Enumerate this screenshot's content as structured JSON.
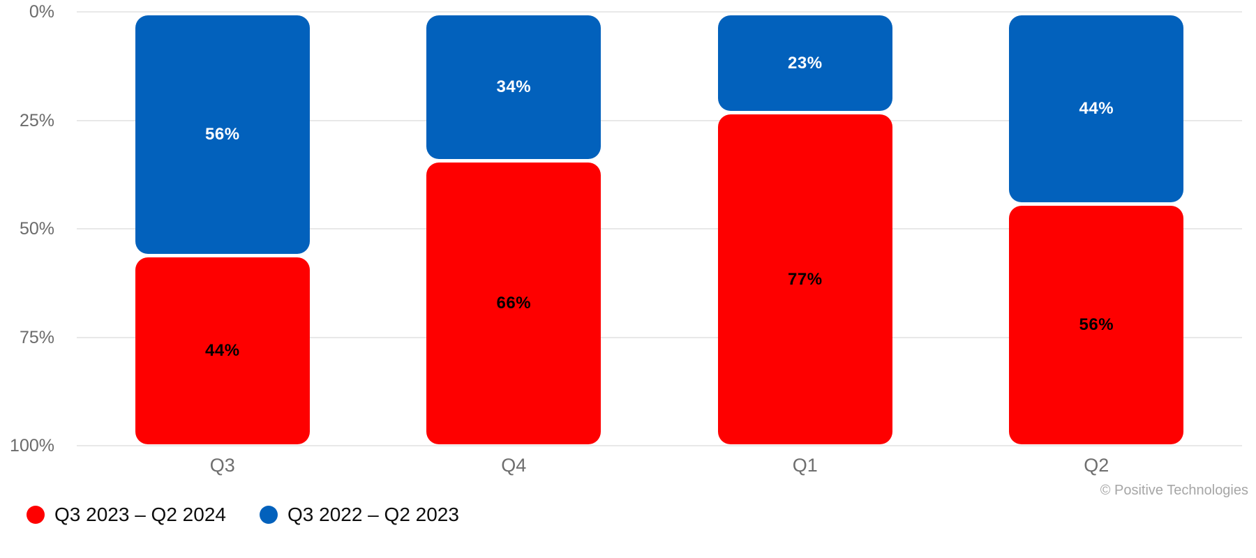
{
  "chart_data": {
    "type": "bar",
    "subtype": "percent-stacked",
    "inverted_y_axis": true,
    "categories": [
      "Q3",
      "Q4",
      "Q1",
      "Q2"
    ],
    "series": [
      {
        "name": "Q3 2022 – Q2 2023",
        "color": "#0261BC",
        "label_text_color": "#ffffff",
        "values": [
          56,
          34,
          23,
          44
        ]
      },
      {
        "name": "Q3 2023 – Q2 2024",
        "color": "#FE0000",
        "label_text_color": "#000000",
        "values": [
          44,
          66,
          77,
          56
        ]
      }
    ],
    "value_suffix": "%",
    "y_axis": {
      "min": 0,
      "max": 100,
      "tick_values": [
        0,
        25,
        50,
        75,
        100
      ],
      "tick_labels": [
        "0%",
        "25%",
        "50%",
        "75%",
        "100%"
      ]
    },
    "grid": true,
    "legend_position": "bottom-left",
    "legend": [
      {
        "label": "Q3 2023 – Q2 2024",
        "color": "#FE0000"
      },
      {
        "label": "Q3 2022 – Q2 2023",
        "color": "#0261BC"
      }
    ]
  },
  "footer": {
    "copyright": "© Positive Technologies"
  },
  "style": {
    "gridline_color": "#e8e8e8",
    "axis_text_color": "#6b6b6b",
    "background": "#ffffff"
  }
}
